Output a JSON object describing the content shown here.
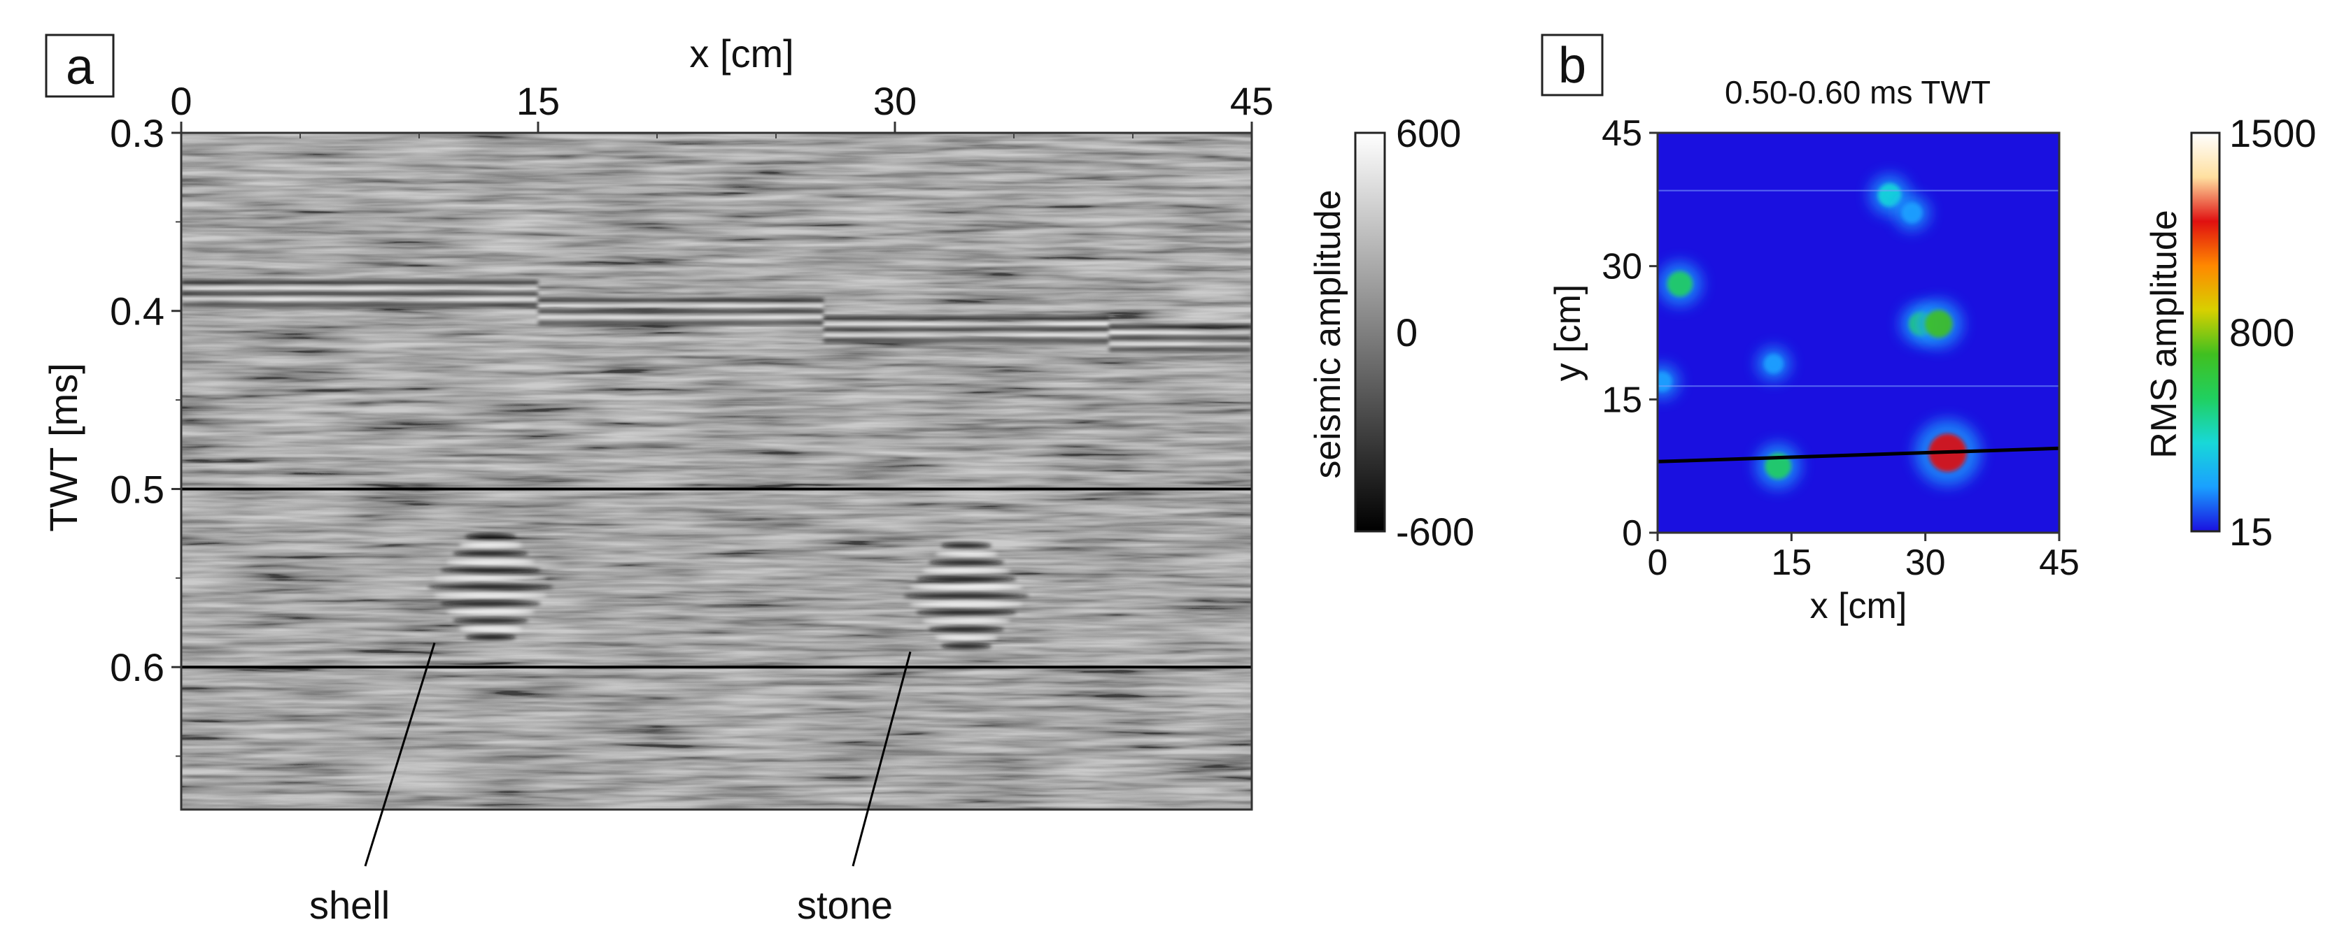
{
  "chart_data": [
    {
      "type": "heatmap",
      "panel_label": "a",
      "xlabel": "x [cm]",
      "ylabel": "TWT [ms]",
      "xlim": [
        0,
        45
      ],
      "ylim": [
        0.3,
        0.68
      ],
      "y_axis_inverted": true,
      "x_axis_position": "top",
      "x_ticks": [
        0,
        15,
        30,
        45
      ],
      "x_tick_labels": [
        "0",
        "15",
        "30",
        "45"
      ],
      "y_ticks": [
        0.3,
        0.4,
        0.5,
        0.6
      ],
      "y_tick_labels": [
        "0.3",
        "0.4",
        "0.5",
        "0.6"
      ],
      "colormap": "grayscale",
      "colorbar": {
        "label": "seismic amplitude",
        "range": [
          -600,
          600
        ],
        "ticks": [
          "600",
          "0",
          "-600"
        ],
        "colors": [
          "#000000",
          "#ffffff"
        ]
      },
      "horizon_lines_twt": [
        0.5,
        0.6
      ],
      "reflector_bands": [
        {
          "x": [
            0,
            15
          ],
          "twt": 0.39
        },
        {
          "x": [
            15,
            27
          ],
          "twt": 0.4
        },
        {
          "x": [
            27,
            39
          ],
          "twt": 0.41
        },
        {
          "x": [
            39,
            45
          ],
          "twt": 0.415
        }
      ],
      "anomalies": [
        {
          "label": "shell",
          "x": 13,
          "twt": 0.555,
          "label_x": 4.5,
          "label_twt": 0.7
        },
        {
          "label": "stone",
          "x": 33,
          "twt": 0.56,
          "label_x": 25,
          "label_twt": 0.7
        }
      ]
    },
    {
      "type": "heatmap",
      "panel_label": "b",
      "title": "0.50-0.60 ms TWT",
      "xlabel": "x [cm]",
      "ylabel": "y [cm]",
      "xlim": [
        0,
        45
      ],
      "ylim": [
        0,
        45
      ],
      "x_ticks": [
        0,
        15,
        30,
        45
      ],
      "x_tick_labels": [
        "0",
        "15",
        "30",
        "45"
      ],
      "y_ticks": [
        0,
        15,
        30,
        45
      ],
      "y_tick_labels": [
        "0",
        "15",
        "30",
        "45"
      ],
      "colormap": "jet",
      "colorbar": {
        "label": "RMS amplitude",
        "range": [
          15,
          1500
        ],
        "ticks": [
          "1500",
          "800",
          "15"
        ],
        "colors": [
          "#1a10e0",
          "#1aa0ff",
          "#18d8d8",
          "#20d060",
          "#40c020",
          "#d8d000",
          "#ff8800",
          "#e01010",
          "#ffe0a0",
          "#ffffff"
        ]
      },
      "profile_line": {
        "x": [
          0,
          45
        ],
        "y": [
          8,
          9.5
        ]
      },
      "anomalies": [
        {
          "x": 2.5,
          "y": 28,
          "amp": 520
        },
        {
          "x": 26,
          "y": 38,
          "amp": 420
        },
        {
          "x": 29.5,
          "y": 23.5,
          "amp": 430
        },
        {
          "x": 31.5,
          "y": 23.5,
          "amp": 640
        },
        {
          "x": 13.5,
          "y": 7.5,
          "amp": 560
        },
        {
          "x": 32.5,
          "y": 9,
          "amp": 1200
        },
        {
          "x": 28.5,
          "y": 36,
          "amp": 260
        },
        {
          "x": 13,
          "y": 19,
          "amp": 200
        },
        {
          "x": 0.5,
          "y": 17,
          "amp": 220
        }
      ]
    }
  ]
}
